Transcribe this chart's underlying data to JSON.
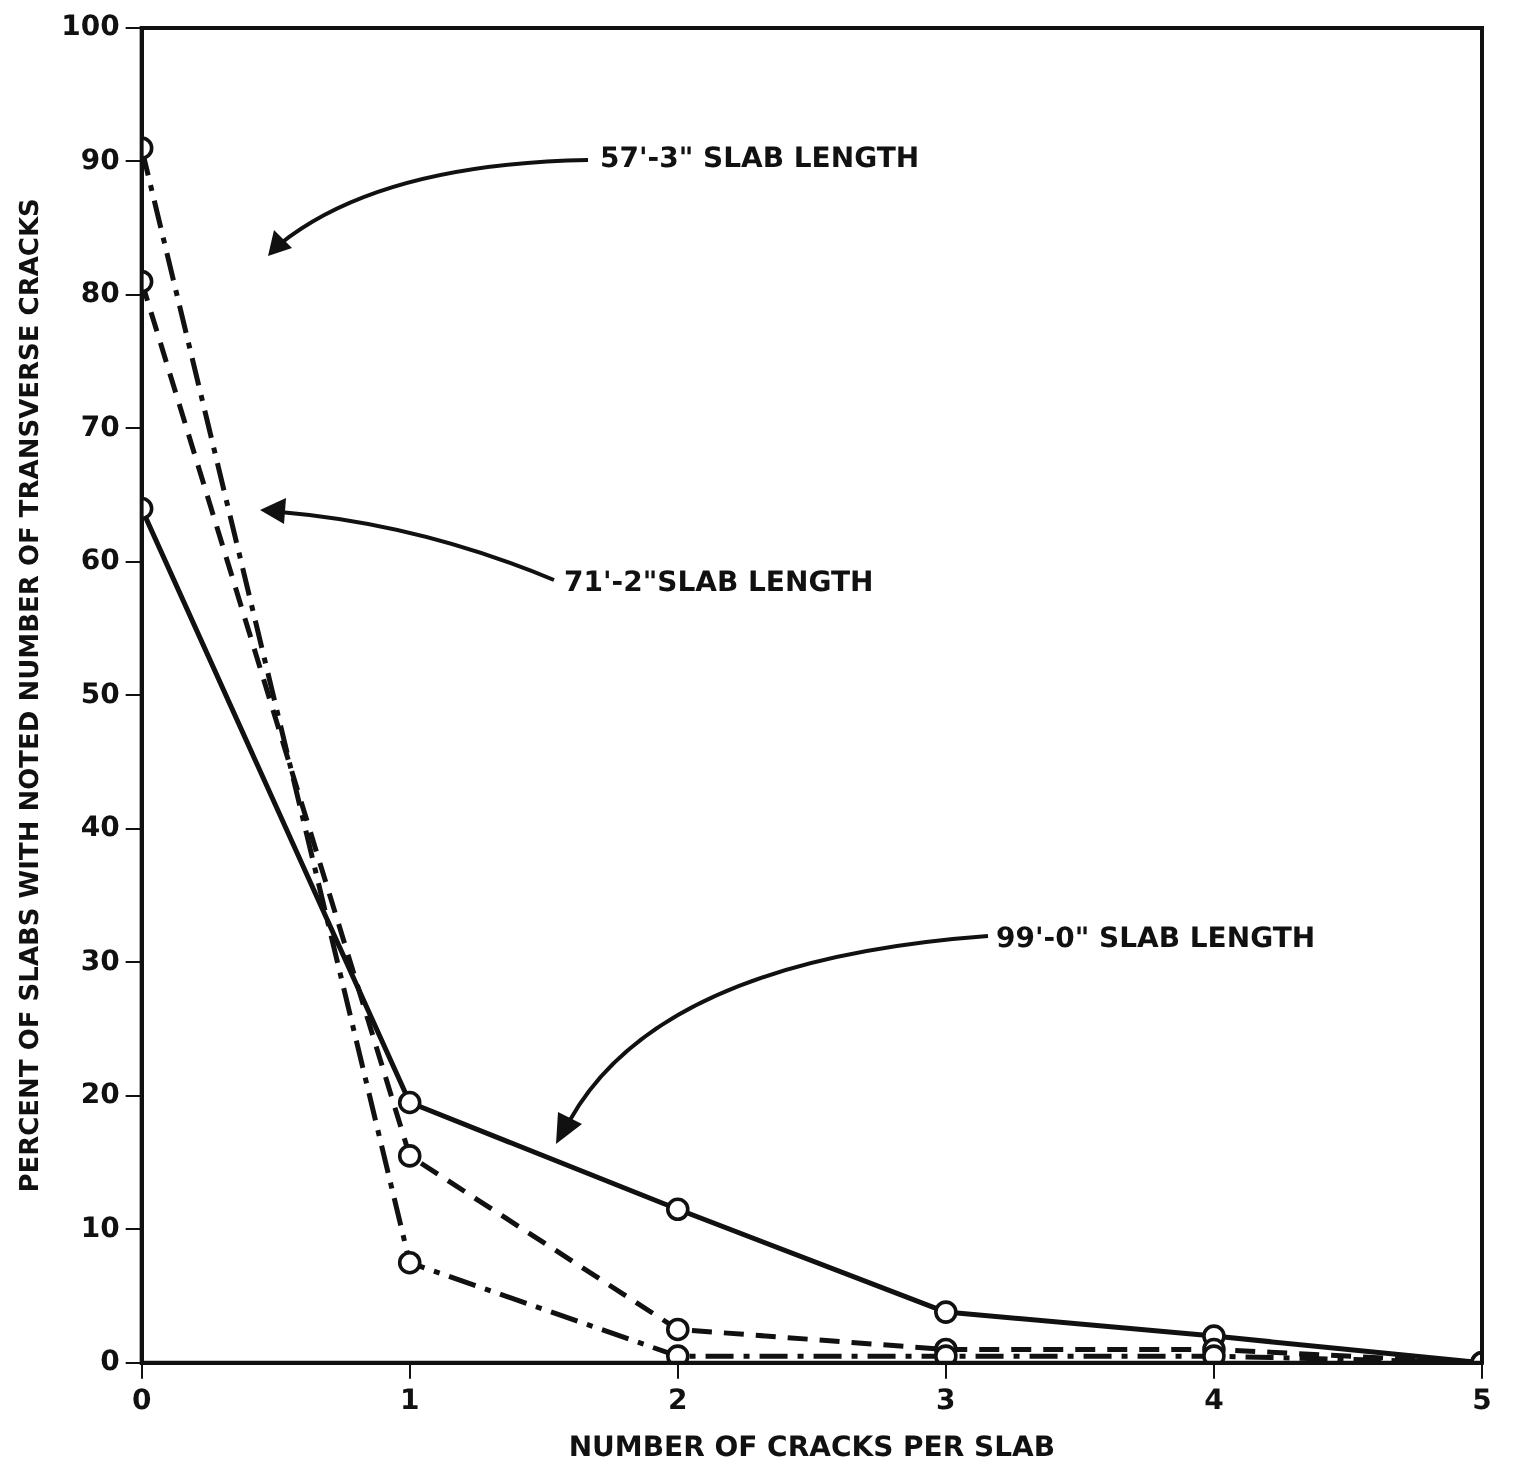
{
  "chart_data": {
    "type": "line",
    "xlabel": "NUMBER OF CRACKS PER SLAB",
    "ylabel": "PERCENT OF SLABS WITH NOTED NUMBER OF TRANSVERSE CRACKS",
    "x": [
      0,
      1,
      2,
      3,
      4,
      5
    ],
    "series": [
      {
        "color": "#111111",
        "line_style": "dashdot",
        "values": [
          91,
          7.5,
          0.5,
          0.5,
          0.5,
          0
        ]
      },
      {
        "color": "#111111",
        "line_style": "dashed",
        "values": [
          81,
          15.5,
          2.5,
          1,
          1,
          0
        ]
      },
      {
        "color": "#111111",
        "line_style": "solid",
        "values": [
          64,
          19.5,
          11.5,
          3.8,
          2,
          0
        ]
      }
    ],
    "xlim": [
      0,
      5
    ],
    "xticks": [
      0,
      1,
      2,
      3,
      4,
      5
    ],
    "ylim": [
      0,
      100
    ],
    "yticks": [
      0,
      10,
      20,
      30,
      40,
      50,
      60,
      70,
      80,
      90,
      100
    ],
    "annotations": [
      "57'-3\" SLAB LENGTH",
      "71'-2\"SLAB LENGTH",
      "99'-0\" SLAB LENGTH"
    ],
    "grid": false,
    "legend": false,
    "marker": "circle"
  }
}
